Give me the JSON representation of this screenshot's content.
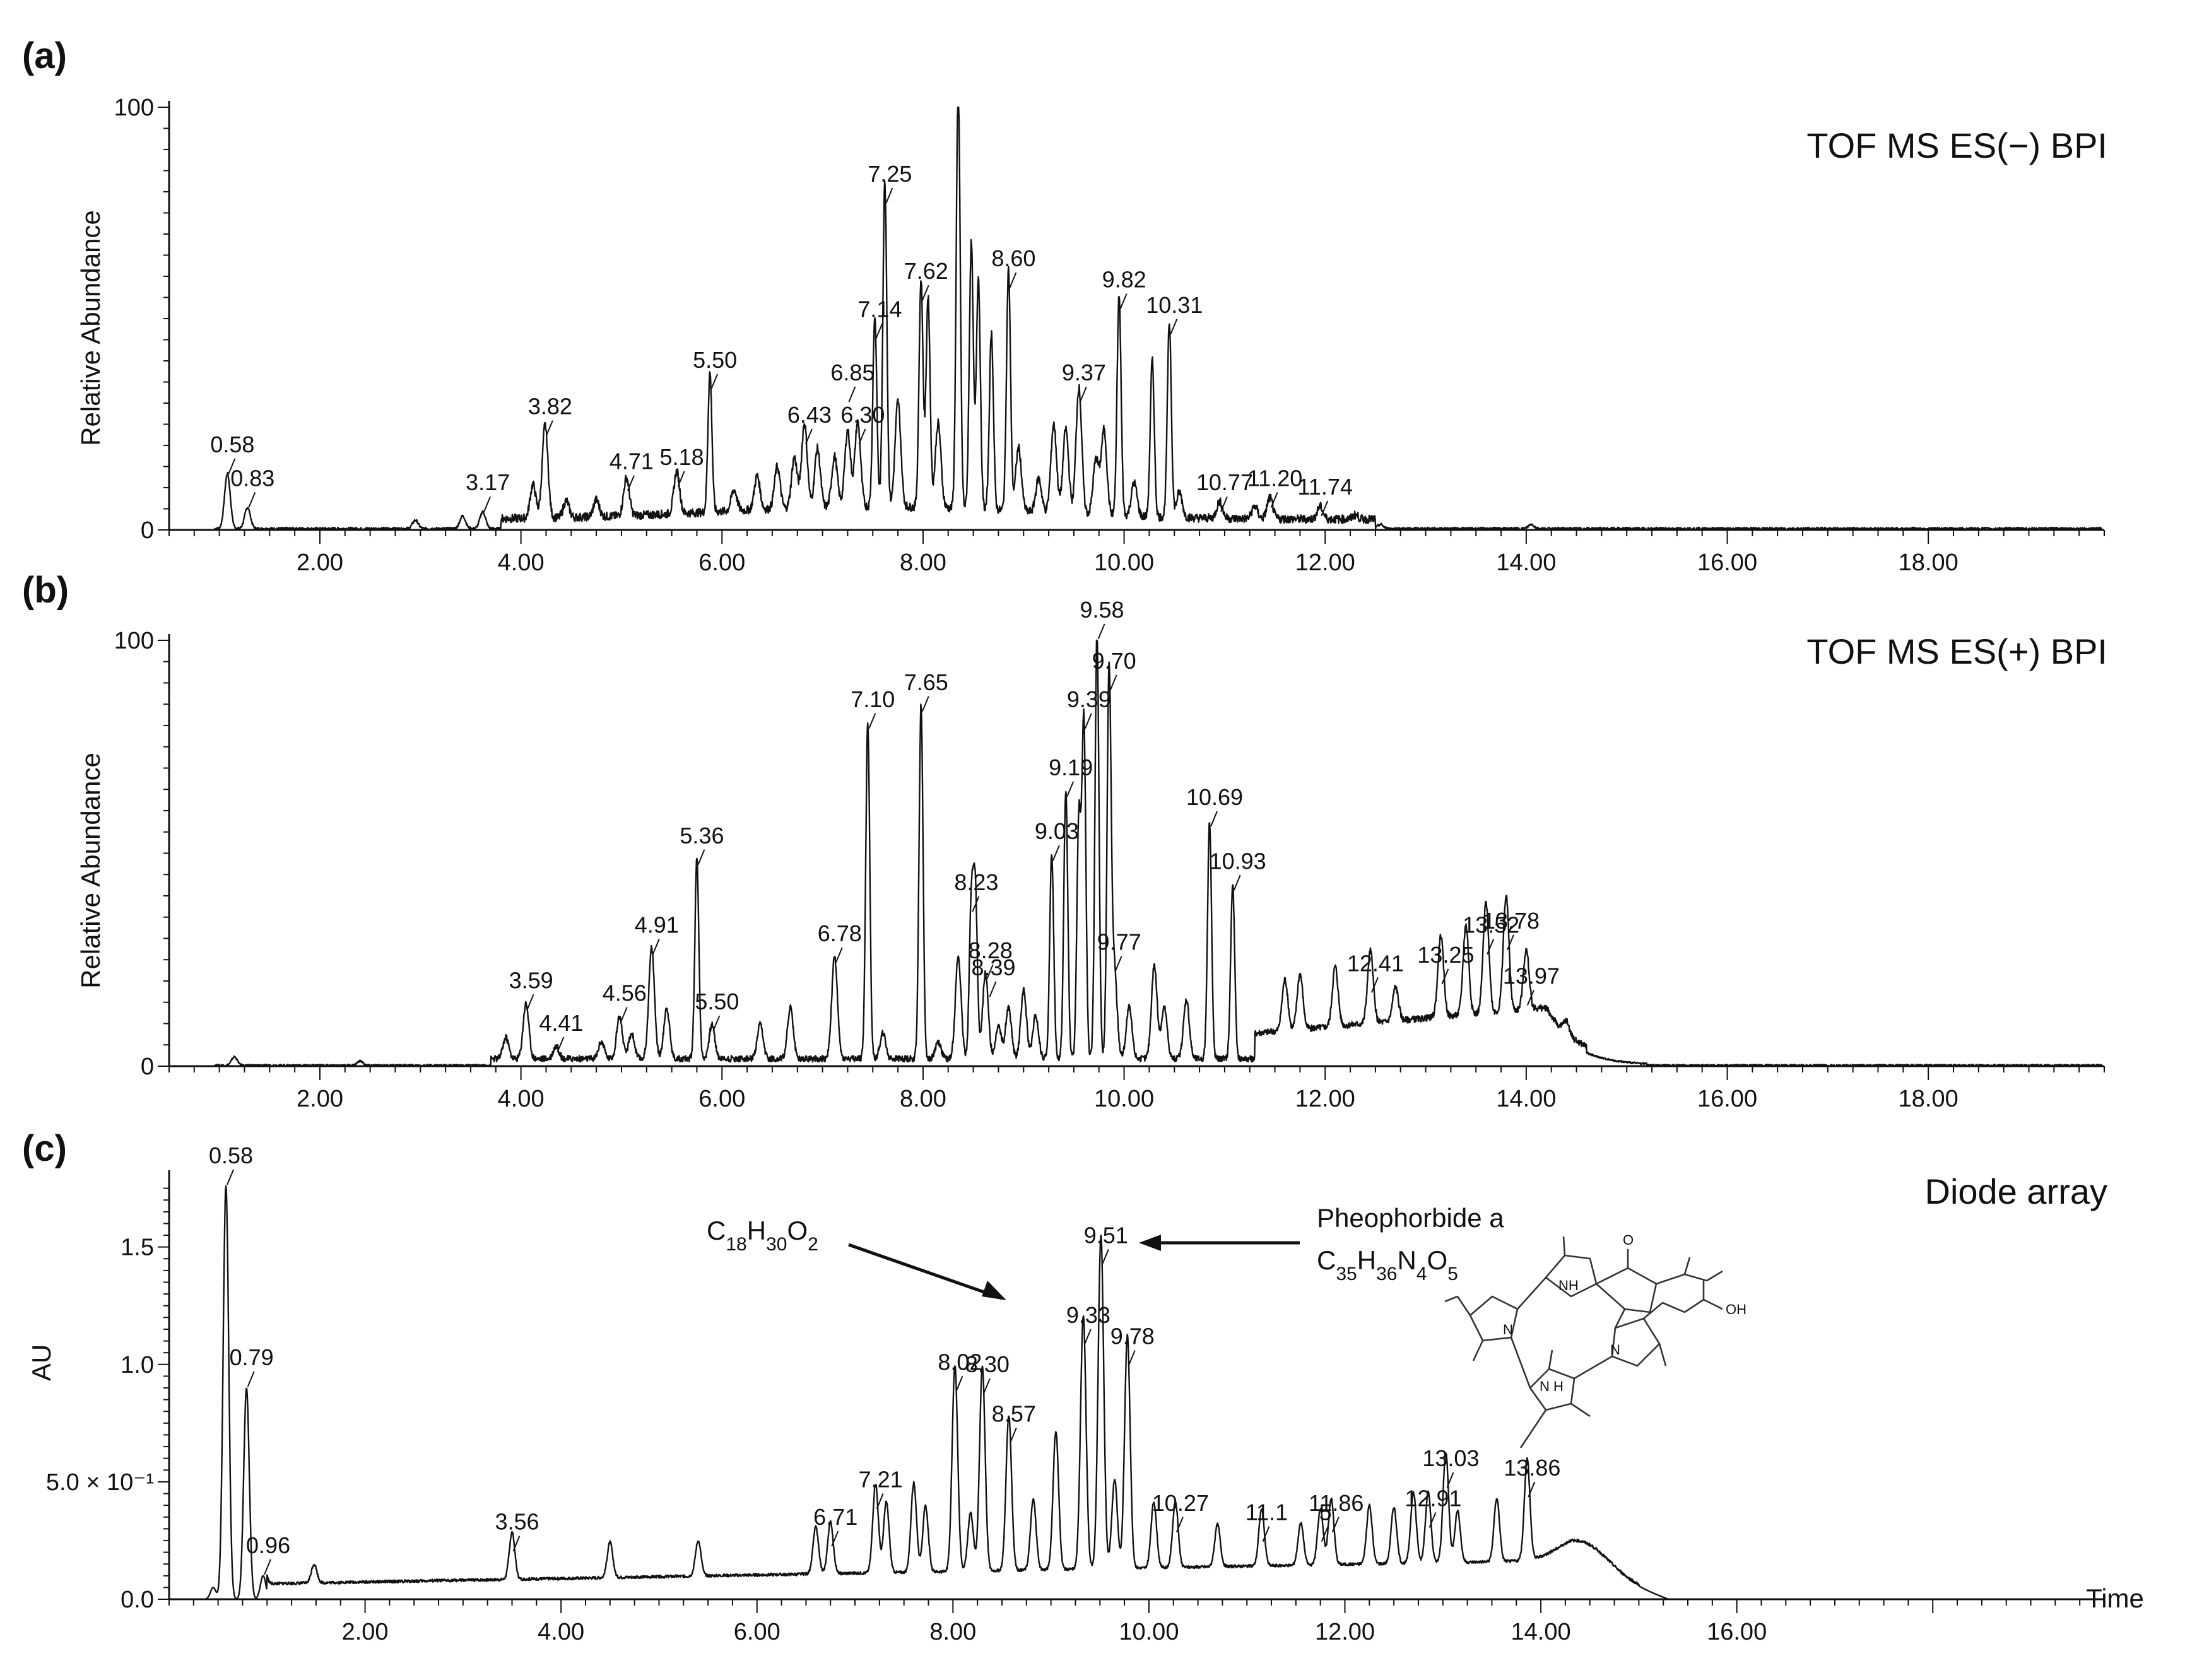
{
  "chart_data": [
    {
      "type": "line",
      "panel_label": "(a)",
      "title": "TOF MS ES(−) BPI",
      "xlabel": "",
      "ylabel": "Relative Abundance",
      "xlim": [
        0.5,
        19.75
      ],
      "ylim": [
        0,
        100
      ],
      "x_ticks": [
        "2.00",
        "4.00",
        "6.00",
        "8.00",
        "10.00",
        "12.00",
        "14.00",
        "16.00",
        "18.00"
      ],
      "y_ticks": [
        "0",
        "100"
      ],
      "peaks": [
        {
          "t": 1.08,
          "y": 13
        },
        {
          "t": 1.28,
          "y": 5
        },
        {
          "t": 2.95,
          "y": 2
        },
        {
          "t": 3.42,
          "y": 3
        },
        {
          "t": 3.62,
          "y": 4
        },
        {
          "t": 4.12,
          "y": 8
        },
        {
          "t": 4.24,
          "y": 22
        },
        {
          "t": 4.45,
          "y": 4
        },
        {
          "t": 4.75,
          "y": 4
        },
        {
          "t": 5.05,
          "y": 9
        },
        {
          "t": 5.55,
          "y": 10
        },
        {
          "t": 5.88,
          "y": 33
        },
        {
          "t": 6.12,
          "y": 5
        },
        {
          "t": 6.35,
          "y": 8
        },
        {
          "t": 6.55,
          "y": 10
        },
        {
          "t": 6.72,
          "y": 12
        },
        {
          "t": 6.82,
          "y": 20
        },
        {
          "t": 6.95,
          "y": 14
        },
        {
          "t": 7.12,
          "y": 12
        },
        {
          "t": 7.25,
          "y": 18
        },
        {
          "t": 7.35,
          "y": 20
        },
        {
          "t": 7.52,
          "y": 45
        },
        {
          "t": 7.62,
          "y": 77
        },
        {
          "t": 7.75,
          "y": 25
        },
        {
          "t": 7.98,
          "y": 54
        },
        {
          "t": 8.05,
          "y": 50
        },
        {
          "t": 8.15,
          "y": 20
        },
        {
          "t": 8.35,
          "y": 100
        },
        {
          "t": 8.48,
          "y": 63
        },
        {
          "t": 8.55,
          "y": 55
        },
        {
          "t": 8.68,
          "y": 42
        },
        {
          "t": 8.85,
          "y": 57
        },
        {
          "t": 8.95,
          "y": 15
        },
        {
          "t": 9.15,
          "y": 8
        },
        {
          "t": 9.3,
          "y": 21
        },
        {
          "t": 9.42,
          "y": 20
        },
        {
          "t": 9.55,
          "y": 30
        },
        {
          "t": 9.72,
          "y": 13
        },
        {
          "t": 9.8,
          "y": 20
        },
        {
          "t": 9.95,
          "y": 52
        },
        {
          "t": 10.1,
          "y": 8
        },
        {
          "t": 10.28,
          "y": 37
        },
        {
          "t": 10.45,
          "y": 46
        },
        {
          "t": 10.55,
          "y": 6
        },
        {
          "t": 10.95,
          "y": 4
        },
        {
          "t": 11.3,
          "y": 3
        },
        {
          "t": 11.45,
          "y": 5
        },
        {
          "t": 11.95,
          "y": 3
        },
        {
          "t": 12.3,
          "y": 1
        },
        {
          "t": 12.55,
          "y": 1
        },
        {
          "t": 14.05,
          "y": 1
        }
      ],
      "labels": [
        {
          "text": "0.58",
          "t": 1.08,
          "y": 13
        },
        {
          "text": "0.83",
          "t": 1.28,
          "y": 5
        },
        {
          "text": "3.17",
          "t": 3.62,
          "y": 4
        },
        {
          "text": "3.82",
          "t": 4.24,
          "y": 22
        },
        {
          "text": "4.71",
          "t": 5.05,
          "y": 9
        },
        {
          "text": "5.18",
          "t": 5.55,
          "y": 10
        },
        {
          "text": "5.50",
          "t": 5.88,
          "y": 33
        },
        {
          "text": "6.43",
          "t": 6.82,
          "y": 20
        },
        {
          "text": "6.30",
          "t": 7.35,
          "y": 20
        },
        {
          "text": "6.85",
          "t": 7.25,
          "y": 30
        },
        {
          "text": "7.14",
          "t": 7.52,
          "y": 45
        },
        {
          "text": "7.25",
          "t": 7.62,
          "y": 77
        },
        {
          "text": "7.62",
          "t": 7.98,
          "y": 54
        },
        {
          "text": "8.60",
          "t": 8.85,
          "y": 57
        },
        {
          "text": "9.37",
          "t": 9.55,
          "y": 30
        },
        {
          "text": "9.82",
          "t": 9.95,
          "y": 52
        },
        {
          "text": "10.31",
          "t": 10.45,
          "y": 46
        },
        {
          "text": "10.77",
          "t": 10.95,
          "y": 4
        },
        {
          "text": "11.20",
          "t": 11.45,
          "y": 5
        },
        {
          "text": "11.74",
          "t": 11.95,
          "y": 3
        }
      ]
    },
    {
      "type": "line",
      "panel_label": "(b)",
      "title": "TOF MS ES(+) BPI",
      "xlabel": "",
      "ylabel": "Relative Abundance",
      "xlim": [
        0.5,
        19.75
      ],
      "ylim": [
        0,
        100
      ],
      "x_ticks": [
        "2.00",
        "4.00",
        "6.00",
        "8.00",
        "10.00",
        "12.00",
        "14.00",
        "16.00",
        "18.00"
      ],
      "y_ticks": [
        "0",
        "100"
      ],
      "peaks": [
        {
          "t": 1.15,
          "y": 2
        },
        {
          "t": 2.4,
          "y": 1
        },
        {
          "t": 3.85,
          "y": 5
        },
        {
          "t": 4.05,
          "y": 13
        },
        {
          "t": 4.35,
          "y": 3
        },
        {
          "t": 4.8,
          "y": 4
        },
        {
          "t": 4.98,
          "y": 10
        },
        {
          "t": 5.1,
          "y": 6
        },
        {
          "t": 5.3,
          "y": 26
        },
        {
          "t": 5.45,
          "y": 12
        },
        {
          "t": 5.75,
          "y": 47
        },
        {
          "t": 5.9,
          "y": 8
        },
        {
          "t": 6.38,
          "y": 8
        },
        {
          "t": 6.68,
          "y": 12
        },
        {
          "t": 7.12,
          "y": 24
        },
        {
          "t": 7.45,
          "y": 79
        },
        {
          "t": 7.6,
          "y": 6
        },
        {
          "t": 7.98,
          "y": 83
        },
        {
          "t": 8.15,
          "y": 4
        },
        {
          "t": 8.35,
          "y": 24
        },
        {
          "t": 8.48,
          "y": 36
        },
        {
          "t": 8.52,
          "y": 39
        },
        {
          "t": 8.62,
          "y": 20
        },
        {
          "t": 8.75,
          "y": 8
        },
        {
          "t": 8.85,
          "y": 12
        },
        {
          "t": 9.0,
          "y": 16
        },
        {
          "t": 9.12,
          "y": 10
        },
        {
          "t": 9.28,
          "y": 48
        },
        {
          "t": 9.42,
          "y": 63
        },
        {
          "t": 9.55,
          "y": 56
        },
        {
          "t": 9.6,
          "y": 79
        },
        {
          "t": 9.73,
          "y": 100
        },
        {
          "t": 9.85,
          "y": 88
        },
        {
          "t": 9.9,
          "y": 22
        },
        {
          "t": 10.05,
          "y": 12
        },
        {
          "t": 10.3,
          "y": 22
        },
        {
          "t": 10.4,
          "y": 12
        },
        {
          "t": 10.62,
          "y": 14
        },
        {
          "t": 10.85,
          "y": 56
        },
        {
          "t": 11.08,
          "y": 41
        },
        {
          "t": 11.6,
          "y": 12
        },
        {
          "t": 11.75,
          "y": 13
        },
        {
          "t": 12.1,
          "y": 14
        },
        {
          "t": 12.45,
          "y": 17
        },
        {
          "t": 12.7,
          "y": 8
        },
        {
          "t": 13.15,
          "y": 19
        },
        {
          "t": 13.4,
          "y": 21
        },
        {
          "t": 13.6,
          "y": 26
        },
        {
          "t": 13.8,
          "y": 27
        },
        {
          "t": 14.0,
          "y": 14
        },
        {
          "t": 14.4,
          "y": 3
        }
      ],
      "labels": [
        {
          "text": "3.59",
          "t": 4.05,
          "y": 13
        },
        {
          "text": "4.41",
          "t": 4.35,
          "y": 3
        },
        {
          "text": "4.56",
          "t": 4.98,
          "y": 10
        },
        {
          "text": "4.91",
          "t": 5.3,
          "y": 26
        },
        {
          "text": "5.36",
          "t": 5.75,
          "y": 47
        },
        {
          "text": "5.50",
          "t": 5.9,
          "y": 8
        },
        {
          "text": "6.78",
          "t": 7.12,
          "y": 24
        },
        {
          "text": "7.10",
          "t": 7.45,
          "y": 79
        },
        {
          "text": "7.65",
          "t": 7.98,
          "y": 83
        },
        {
          "text": "8.23",
          "t": 8.48,
          "y": 36
        },
        {
          "text": "8.28",
          "t": 8.62,
          "y": 20
        },
        {
          "text": "8.39",
          "t": 8.65,
          "y": 16
        },
        {
          "text": "9.03",
          "t": 9.28,
          "y": 48
        },
        {
          "text": "9.19",
          "t": 9.42,
          "y": 63
        },
        {
          "text": "9.39",
          "t": 9.6,
          "y": 79
        },
        {
          "text": "9.58",
          "t": 9.73,
          "y": 100
        },
        {
          "text": "9.70",
          "t": 9.85,
          "y": 88
        },
        {
          "text": "9.77",
          "t": 9.9,
          "y": 22
        },
        {
          "text": "10.69",
          "t": 10.85,
          "y": 56
        },
        {
          "text": "10.93",
          "t": 11.08,
          "y": 41
        },
        {
          "text": "12.41",
          "t": 12.45,
          "y": 17
        },
        {
          "text": "13.25",
          "t": 13.15,
          "y": 19
        },
        {
          "text": "13.52",
          "t": 13.6,
          "y": 26
        },
        {
          "text": "13.78",
          "t": 13.8,
          "y": 27
        },
        {
          "text": "13.97",
          "t": 14.0,
          "y": 14
        }
      ]
    },
    {
      "type": "line",
      "panel_label": "(c)",
      "title": "Diode array",
      "xlabel": "Time",
      "ylabel": "AU",
      "xlim": [
        0.0,
        19.75
      ],
      "ylim": [
        0.0,
        1.8
      ],
      "x_ticks": [
        "2.00",
        "4.00",
        "6.00",
        "8.00",
        "10.00",
        "12.00",
        "14.00",
        "16.00"
      ],
      "y_ticks": [
        {
          "label": "0.0",
          "v": 0.0
        },
        {
          "label": "5.0 × 10⁻¹",
          "v": 0.5
        },
        {
          "label": "1.0",
          "v": 1.0
        },
        {
          "label": "1.5",
          "v": 1.5
        }
      ],
      "peaks": [
        {
          "t": 0.45,
          "y": 0.05
        },
        {
          "t": 0.58,
          "y": 1.76
        },
        {
          "t": 0.79,
          "y": 0.9
        },
        {
          "t": 0.96,
          "y": 0.1
        },
        {
          "t": 1.48,
          "y": 0.08
        },
        {
          "t": 3.5,
          "y": 0.2
        },
        {
          "t": 4.5,
          "y": 0.15
        },
        {
          "t": 5.4,
          "y": 0.15
        },
        {
          "t": 6.6,
          "y": 0.2
        },
        {
          "t": 6.75,
          "y": 0.22
        },
        {
          "t": 7.21,
          "y": 0.38
        },
        {
          "t": 7.32,
          "y": 0.3
        },
        {
          "t": 7.6,
          "y": 0.38
        },
        {
          "t": 7.72,
          "y": 0.28
        },
        {
          "t": 8.02,
          "y": 0.88
        },
        {
          "t": 8.18,
          "y": 0.25
        },
        {
          "t": 8.3,
          "y": 0.87
        },
        {
          "t": 8.57,
          "y": 0.66
        },
        {
          "t": 8.82,
          "y": 0.3
        },
        {
          "t": 9.05,
          "y": 0.59
        },
        {
          "t": 9.33,
          "y": 1.08
        },
        {
          "t": 9.51,
          "y": 1.42
        },
        {
          "t": 9.65,
          "y": 0.38
        },
        {
          "t": 9.78,
          "y": 0.99
        },
        {
          "t": 10.05,
          "y": 0.28
        },
        {
          "t": 10.27,
          "y": 0.28
        },
        {
          "t": 10.7,
          "y": 0.18
        },
        {
          "t": 11.15,
          "y": 0.24
        },
        {
          "t": 11.55,
          "y": 0.18
        },
        {
          "t": 11.75,
          "y": 0.24
        },
        {
          "t": 11.86,
          "y": 0.28
        },
        {
          "t": 12.25,
          "y": 0.25
        },
        {
          "t": 12.5,
          "y": 0.24
        },
        {
          "t": 12.7,
          "y": 0.3
        },
        {
          "t": 12.85,
          "y": 0.3
        },
        {
          "t": 13.03,
          "y": 0.47
        },
        {
          "t": 13.15,
          "y": 0.22
        },
        {
          "t": 13.55,
          "y": 0.27
        },
        {
          "t": 13.86,
          "y": 0.43
        },
        {
          "t": 14.45,
          "y": 0.1
        }
      ],
      "labels": [
        {
          "text": "0.58",
          "t": 0.58,
          "y": 1.76
        },
        {
          "text": "0.79",
          "t": 0.79,
          "y": 0.9
        },
        {
          "text": "0.96",
          "t": 0.96,
          "y": 0.1
        },
        {
          "text": "3.56",
          "t": 3.5,
          "y": 0.2
        },
        {
          "text": "6.71",
          "t": 6.75,
          "y": 0.22
        },
        {
          "text": "7.21",
          "t": 7.21,
          "y": 0.38
        },
        {
          "text": "8.02",
          "t": 8.02,
          "y": 0.88
        },
        {
          "text": "8.30",
          "t": 8.3,
          "y": 0.87
        },
        {
          "text": "8.57",
          "t": 8.57,
          "y": 0.66
        },
        {
          "text": "9.33",
          "t": 9.33,
          "y": 1.08
        },
        {
          "text": "9.51",
          "t": 9.51,
          "y": 1.42
        },
        {
          "text": "9.78",
          "t": 9.78,
          "y": 0.99
        },
        {
          "text": "10.27",
          "t": 10.27,
          "y": 0.28
        },
        {
          "text": "11.1",
          "t": 11.15,
          "y": 0.24
        },
        {
          "text": "5",
          "t": 11.75,
          "y": 0.24
        },
        {
          "text": "11.86",
          "t": 11.86,
          "y": 0.28
        },
        {
          "text": "12.91",
          "t": 12.85,
          "y": 0.3
        },
        {
          "text": "13.03",
          "t": 13.03,
          "y": 0.47
        },
        {
          "text": "13.86",
          "t": 13.86,
          "y": 0.43
        }
      ],
      "annotations": {
        "formula_c18": {
          "parts": [
            [
              "C",
              false
            ],
            [
              "18",
              true
            ],
            [
              "H",
              false
            ],
            [
              "30",
              true
            ],
            [
              "O",
              false
            ],
            [
              "2",
              true
            ]
          ]
        },
        "pheophorbide_name": "Pheophorbide a",
        "formula_c35": {
          "parts": [
            [
              "C",
              false
            ],
            [
              "35",
              true
            ],
            [
              "H",
              false
            ],
            [
              "36",
              true
            ],
            [
              "N",
              false
            ],
            [
              "4",
              true
            ],
            [
              "O",
              false
            ],
            [
              "5",
              true
            ]
          ]
        },
        "structure_labels": {
          "nh_top": "NH",
          "nh_bottom": "N H",
          "n_left": "N",
          "n_right": "N",
          "oh": "OH",
          "o_ketone": "O"
        }
      }
    }
  ]
}
